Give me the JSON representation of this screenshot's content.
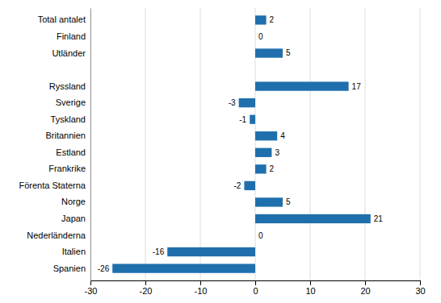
{
  "chart_data": {
    "type": "bar",
    "orientation": "horizontal",
    "categories": [
      "Spanien",
      "Italien",
      "Nederländerna",
      "Japan",
      "Norge",
      "Förenta Staterna",
      "Frankrike",
      "Estland",
      "Britannien",
      "Tyskland",
      "Sverige",
      "Ryssland",
      null,
      "Utländer",
      "Finland",
      "Total antalet"
    ],
    "values": [
      -26,
      -16,
      0,
      21,
      5,
      -2,
      2,
      3,
      4,
      -1,
      -3,
      17,
      null,
      5,
      0,
      2
    ],
    "color": "#1f6fad",
    "xlim": [
      -30,
      30
    ],
    "xticks": [
      -30,
      -20,
      -10,
      0,
      10,
      20,
      30
    ],
    "grid": true,
    "data_labels": true
  }
}
